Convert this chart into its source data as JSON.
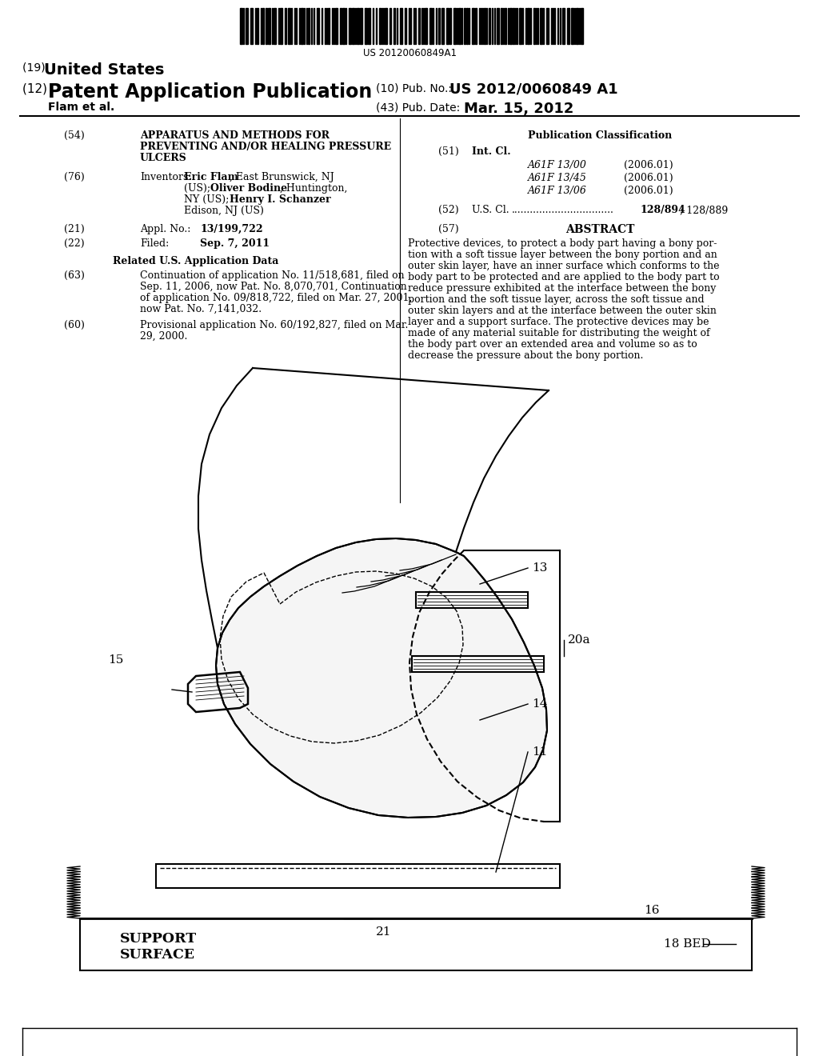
{
  "bg_color": "#ffffff",
  "barcode_text": "US 20120060849A1",
  "title_19": "(19) United States",
  "title_12_prefix": "(12) ",
  "title_12_main": "Patent Application Publication",
  "pub_no_label": "(10) Pub. No.: ",
  "pub_no_value": "US 2012/0060849 A1",
  "author": "    Flam et al.",
  "pub_date_label": "(43) Pub. Date:",
  "pub_date_value": "Mar. 15, 2012",
  "field54_label": "(54)",
  "field54_text": "APPARATUS AND METHODS FOR\nPREVENTING AND/OR HEALING PRESSURE\nULCERS",
  "field76_label": "(76)",
  "field76_key": "Inventors:",
  "field21_label": "(21)",
  "field21_key": "Appl. No.:",
  "field21_value": "13/199,722",
  "field22_label": "(22)",
  "field22_key": "Filed:",
  "field22_value": "Sep. 7, 2011",
  "related_title": "Related U.S. Application Data",
  "field63_label": "(63)",
  "field63_text": "Continuation of application No. 11/518,681, filed on\nSep. 11, 2006, now Pat. No. 8,070,701, Continuation\nof application No. 09/818,722, filed on Mar. 27, 2001,\nnow Pat. No. 7,141,032.",
  "field60_label": "(60)",
  "field60_text": "Provisional application No. 60/192,827, filed on Mar.\n29, 2000.",
  "pub_class_title": "Publication Classification",
  "field51_label": "(51)",
  "field51_key": "Int. Cl.",
  "class1_code": "A61F 13/00",
  "class1_year": "(2006.01)",
  "class2_code": "A61F 13/45",
  "class2_year": "(2006.01)",
  "class3_code": "A61F 13/06",
  "class3_year": "(2006.01)",
  "field52_label": "(52)",
  "field52_key": "U.S. Cl.",
  "field52_dots": ".................................",
  "field52_value_bold": "128/894",
  "field52_value_rest": "; 128/889",
  "abstract_label": "(57)",
  "abstract_title": "ABSTRACT",
  "abstract_text": "Protective devices, to protect a body part having a bony por-\ntion with a soft tissue layer between the bony portion and an\nouter skin layer, have an inner surface which conforms to the\nbody part to be protected and are applied to the body part to\nreduce pressure exhibited at the interface between the bony\nportion and the soft tissue layer, across the soft tissue and\nouter skin layers and at the interface between the outer skin\nlayer and a support surface. The protective devices may be\nmade of any material suitable for distributing the weight of\nthe body part over an extended area and volume so as to\ndecrease the pressure about the bony portion.",
  "support_surface_text": "SUPPORT\nSURFACE",
  "label_13": "13",
  "label_20a": "20a",
  "label_14": "14",
  "label_11": "11",
  "label_15": "15",
  "label_16": "16",
  "label_21": "21",
  "label_18bed": "18 BED"
}
